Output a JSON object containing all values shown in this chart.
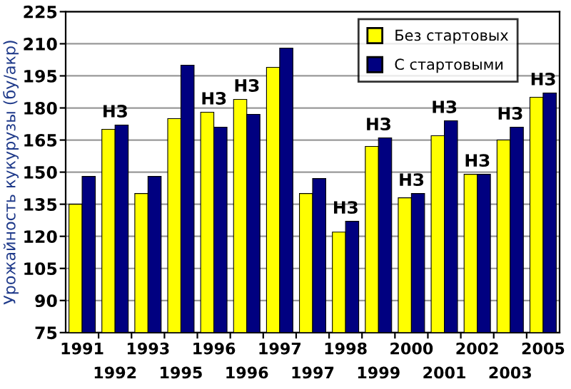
{
  "chart_data": {
    "type": "bar",
    "ylabel": "Урожайность кукурузы (бу/акр)",
    "categories": [
      "1991",
      "1992",
      "1993",
      "1995",
      "1996",
      "1996",
      "1997",
      "1997",
      "1998",
      "1999",
      "2000",
      "2001",
      "2002",
      "2003",
      "2005"
    ],
    "series": [
      {
        "name": "Без стартовых",
        "color": "#ffff00",
        "values": [
          135,
          170,
          140,
          175,
          178,
          184,
          199,
          140,
          122,
          162,
          138,
          167,
          149,
          165,
          185
        ]
      },
      {
        "name": "С стартовыми",
        "color": "#000080",
        "values": [
          148,
          172,
          148,
          200,
          171,
          177,
          208,
          147,
          127,
          166,
          140,
          174,
          149,
          171,
          187
        ],
        "value_labels": [
          null,
          "НЗ",
          null,
          null,
          "НЗ",
          "НЗ",
          null,
          null,
          "НЗ",
          "НЗ",
          "НЗ",
          "НЗ",
          "НЗ",
          "НЗ",
          "НЗ"
        ]
      }
    ],
    "ylim": [
      75,
      225
    ],
    "yticks": [
      75,
      90,
      105,
      120,
      135,
      150,
      165,
      180,
      195,
      210,
      225
    ],
    "grid": "y",
    "legend": "top right"
  }
}
